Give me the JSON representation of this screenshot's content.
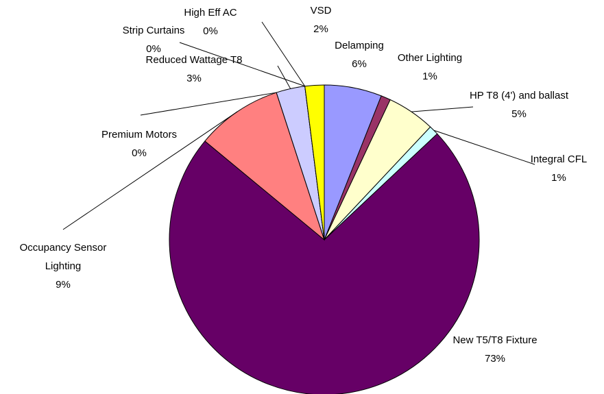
{
  "chart_data": {
    "type": "pie",
    "categories": [
      "Delamping",
      "Other Lighting",
      "HP T8 (4') and ballast",
      "Integral CFL",
      "New  T5/T8 Fixture",
      "Occupancy Sensor Lighting",
      "Premium Motors",
      "Reduced Wattage T8",
      "Strip Curtains",
      "High Eff AC",
      "VSD"
    ],
    "values": [
      6,
      1,
      5,
      1,
      73,
      9,
      0,
      3,
      0,
      0,
      2
    ],
    "value_labels": [
      "6%",
      "1%",
      "5%",
      "1%",
      "73%",
      "9%",
      "0%",
      "3%",
      "0%",
      "0%",
      "2%"
    ],
    "colors": [
      "#9999ff",
      "#993366",
      "#ffffcc",
      "#ccffff",
      "#660066",
      "#ff8080",
      "#0066cc",
      "#ccccff",
      "#000080",
      "#ff00ff",
      "#ffff00"
    ]
  }
}
